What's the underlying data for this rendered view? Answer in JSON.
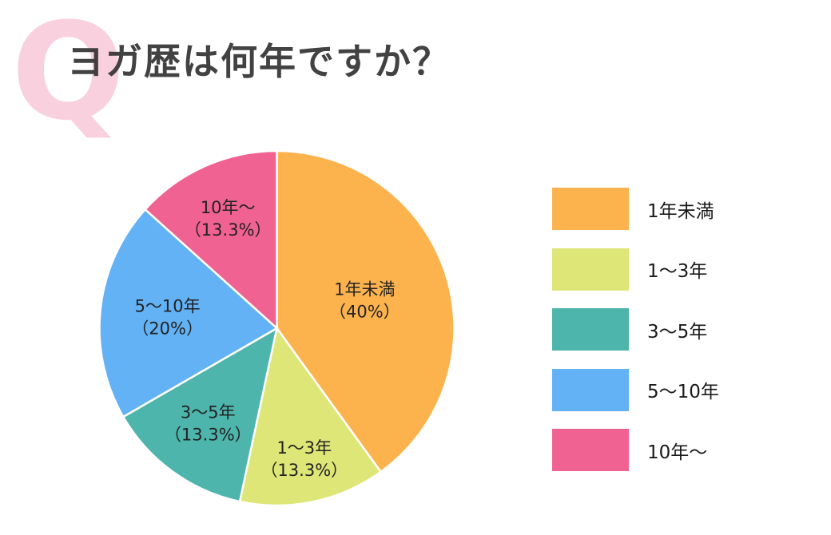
{
  "header": {
    "q_mark": "Q",
    "title": "ヨガ歴は何年ですか？"
  },
  "chart_data": {
    "type": "pie",
    "title": "ヨガ歴は何年ですか？",
    "categories": [
      "1年未満",
      "1〜3年",
      "3〜5年",
      "5〜10年",
      "10年〜"
    ],
    "values": [
      40,
      13.3,
      13.3,
      20,
      13.3
    ],
    "unit": "%",
    "colors": [
      "#fdb34d",
      "#dde676",
      "#4db5ac",
      "#63b2f5",
      "#f06291"
    ],
    "start_angle": "12 o'clock",
    "direction": "clockwise",
    "legend_position": "right",
    "data_labels": [
      {
        "name": "1年未満",
        "pct": "（40%）"
      },
      {
        "name": "1〜3年",
        "pct": "（13.3%）"
      },
      {
        "name": "3〜5年",
        "pct": "（13.3%）"
      },
      {
        "name": "5〜10年",
        "pct": "（20%）"
      },
      {
        "name": "10年〜",
        "pct": "（13.3%）"
      }
    ]
  },
  "legend": {
    "items": [
      {
        "label": "1年未満",
        "color": "#fdb34d"
      },
      {
        "label": "1〜3年",
        "color": "#dde676"
      },
      {
        "label": "3〜5年",
        "color": "#4db5ac"
      },
      {
        "label": "5〜10年",
        "color": "#63b2f5"
      },
      {
        "label": "10年〜",
        "color": "#f06291"
      }
    ]
  }
}
